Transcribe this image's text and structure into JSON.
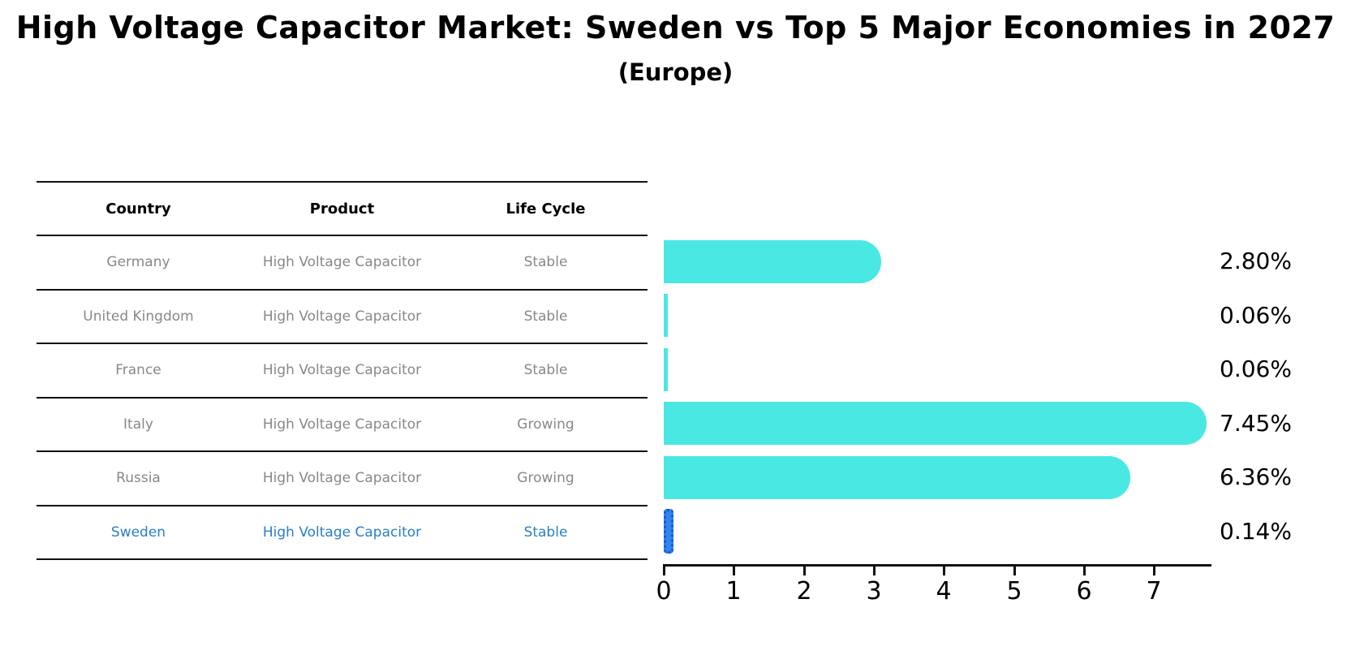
{
  "title": "High Voltage Capacitor Market: Sweden vs Top 5 Major Economies in 2027",
  "subtitle": "(Europe)",
  "table": {
    "headers": [
      "Country",
      "Product",
      "Life Cycle"
    ],
    "rows": [
      {
        "country": "Germany",
        "product": "High Voltage Capacitor",
        "life_cycle": "Stable",
        "highlight": false
      },
      {
        "country": "United Kingdom",
        "product": "High Voltage Capacitor",
        "life_cycle": "Stable",
        "highlight": false
      },
      {
        "country": "France",
        "product": "High Voltage Capacitor",
        "life_cycle": "Stable",
        "highlight": false
      },
      {
        "country": "Italy",
        "product": "High Voltage Capacitor",
        "life_cycle": "Growing",
        "highlight": false
      },
      {
        "country": "Russia",
        "product": "High Voltage Capacitor",
        "life_cycle": "Growing",
        "highlight": false
      },
      {
        "country": "Sweden",
        "product": "High Voltage Capacitor",
        "life_cycle": "Stable",
        "highlight": true
      }
    ]
  },
  "chart_data": {
    "type": "bar",
    "orientation": "horizontal",
    "categories": [
      "Germany",
      "United Kingdom",
      "France",
      "Italy",
      "Russia",
      "Sweden"
    ],
    "values": [
      2.8,
      0.06,
      0.06,
      7.45,
      6.36,
      0.14
    ],
    "value_labels": [
      "2.80%",
      "0.06%",
      "0.06%",
      "7.45%",
      "6.36%",
      "0.14%"
    ],
    "title": "High Voltage Capacitor Market: Sweden vs Top 5 Major Economies in 2027 (Europe)",
    "xlabel": "",
    "ylabel": "",
    "xlim": [
      0,
      7.83
    ],
    "x_ticks": [
      0,
      1,
      2,
      3,
      4,
      5,
      6,
      7
    ],
    "grid": false,
    "legend": false,
    "bar_color": "#4AE8E2",
    "highlight_bar_color": "#2E86EE",
    "highlight_index": 5
  },
  "colors": {
    "bar_turquoise": "#4AE8E2",
    "highlight_blue": "#2E86EE",
    "highlight_dot_blue": "#1D55D4",
    "highlight_text_blue": "#2A7EC7",
    "row_text_gray": "#888888",
    "line_black": "#111111"
  }
}
